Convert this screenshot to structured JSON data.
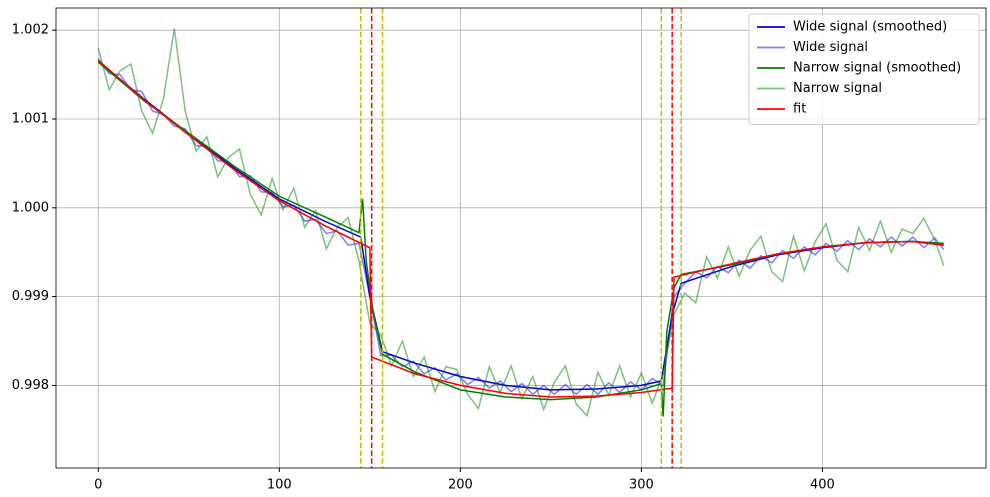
{
  "chart_data": {
    "type": "line",
    "xlim": [
      -23.35,
      490.35
    ],
    "xticks": [
      0,
      100,
      200,
      300,
      400
    ],
    "ylim": [
      0.99707,
      1.00225
    ],
    "yticks": [
      1.002,
      1.001,
      {
        "value": 1.0,
        "label": "1.000"
      },
      0.999,
      0.998
    ],
    "grid": true,
    "legend": "upper right",
    "vlines": [
      {
        "x": 145,
        "color": "#bfbf00",
        "dash": true
      },
      {
        "x": 151,
        "color": "#ff0000",
        "dash": true
      },
      {
        "x": 157,
        "color": "#bfbf00",
        "dash": true
      },
      {
        "x": 311,
        "color": "#bfbf00",
        "dash": true
      },
      {
        "x": 317,
        "color": "#ff0000",
        "dash": true
      },
      {
        "x": 322,
        "color": "#bfbf00",
        "dash": true
      }
    ],
    "series": [
      {
        "name": "Wide signal (smoothed)",
        "color": "#0000cc",
        "alpha": 1,
        "x": [
          0,
          25,
          50,
          75,
          100,
          125,
          145,
          150,
          157,
          175,
          200,
          225,
          250,
          275,
          300,
          311,
          317,
          322,
          350,
          375,
          400,
          425,
          450,
          467
        ],
        "values": [
          1.00165,
          1.00123,
          1.00083,
          1.00045,
          1.0001,
          0.99985,
          0.99967,
          0.999,
          0.99838,
          0.99825,
          0.9981,
          0.998,
          0.99795,
          0.99796,
          0.998,
          0.99805,
          0.9988,
          0.99915,
          0.99934,
          0.99947,
          0.99955,
          0.99961,
          0.99962,
          0.99958
        ]
      },
      {
        "name": "Wide signal",
        "color": "#0000ff",
        "alpha": 0.5,
        "x": [
          0,
          6,
          12,
          18,
          24,
          30,
          36,
          42,
          48,
          54,
          60,
          66,
          72,
          78,
          84,
          90,
          96,
          102,
          108,
          114,
          120,
          126,
          132,
          138,
          144,
          150,
          156,
          162,
          168,
          174,
          180,
          186,
          192,
          198,
          204,
          210,
          216,
          222,
          228,
          234,
          240,
          246,
          252,
          258,
          264,
          270,
          276,
          282,
          288,
          294,
          300,
          306,
          312,
          318,
          324,
          330,
          336,
          342,
          348,
          354,
          360,
          366,
          372,
          378,
          384,
          390,
          396,
          402,
          408,
          414,
          420,
          426,
          432,
          438,
          444,
          450,
          456,
          462,
          467
        ],
        "values": [
          1.00168,
          1.00151,
          1.0015,
          1.00133,
          1.00131,
          1.00109,
          1.00105,
          1.00092,
          1.00089,
          1.0007,
          1.00069,
          1.00053,
          1.00052,
          1.00035,
          1.00036,
          1.00018,
          1.00017,
          1.00001,
          1.00003,
          0.99985,
          0.99987,
          0.99971,
          0.99974,
          0.99958,
          0.9996,
          0.999,
          0.99834,
          0.99834,
          0.99821,
          0.99827,
          0.99813,
          0.9982,
          0.99806,
          0.99813,
          0.99801,
          0.99809,
          0.99797,
          0.99805,
          0.99793,
          0.99802,
          0.9979,
          0.998,
          0.9979,
          0.99801,
          0.9979,
          0.99801,
          0.9979,
          0.99803,
          0.99792,
          0.99804,
          0.99795,
          0.99808,
          0.998,
          0.999,
          0.99915,
          0.99928,
          0.99921,
          0.99934,
          0.99927,
          0.99941,
          0.99932,
          0.99946,
          0.99938,
          0.99952,
          0.99943,
          0.99956,
          0.99947,
          0.9996,
          0.99951,
          0.99963,
          0.99953,
          0.99965,
          0.99956,
          0.99967,
          0.99957,
          0.99967,
          0.99955,
          0.99966,
          0.99953
        ]
      },
      {
        "name": "Narrow signal (smoothed)",
        "color": "#008000",
        "alpha": 1,
        "x": [
          0,
          25,
          50,
          75,
          100,
          125,
          144,
          146,
          148,
          152,
          157,
          175,
          200,
          225,
          250,
          275,
          300,
          311,
          312,
          314,
          318,
          322,
          350,
          375,
          400,
          425,
          450,
          467
        ],
        "values": [
          1.00164,
          1.00121,
          1.00084,
          1.00047,
          1.00013,
          0.9999,
          0.99972,
          1.0001,
          0.9994,
          0.9988,
          0.99835,
          0.99815,
          0.99795,
          0.99787,
          0.99784,
          0.99787,
          0.99795,
          0.99802,
          0.99765,
          0.9986,
          0.9991,
          0.99925,
          0.99936,
          0.99948,
          0.99956,
          0.99961,
          0.99962,
          0.9996
        ]
      },
      {
        "name": "Narrow signal",
        "color": "#008000",
        "alpha": 0.5,
        "x": [
          0,
          6,
          12,
          18,
          24,
          30,
          36,
          42,
          48,
          54,
          60,
          66,
          72,
          78,
          84,
          90,
          96,
          102,
          108,
          114,
          120,
          126,
          132,
          138,
          144,
          150,
          156,
          162,
          168,
          174,
          180,
          186,
          192,
          198,
          204,
          210,
          216,
          222,
          228,
          234,
          240,
          246,
          252,
          258,
          264,
          270,
          276,
          282,
          288,
          294,
          300,
          306,
          312,
          318,
          324,
          330,
          336,
          342,
          348,
          354,
          360,
          366,
          372,
          378,
          384,
          390,
          396,
          402,
          408,
          414,
          420,
          426,
          432,
          438,
          444,
          450,
          456,
          462,
          467
        ],
        "values": [
          1.0018,
          1.00133,
          1.00154,
          1.00162,
          1.00109,
          1.00084,
          1.00123,
          1.00202,
          1.00109,
          1.00064,
          1.0008,
          1.00035,
          1.00057,
          1.00066,
          1.00015,
          0.99992,
          1.00033,
          0.99998,
          1.00022,
          0.99978,
          0.99997,
          0.99954,
          0.99978,
          0.99989,
          0.9994,
          0.9987,
          0.99857,
          0.99822,
          0.9985,
          0.9981,
          0.99832,
          0.99793,
          0.99821,
          0.99818,
          0.9979,
          0.99774,
          0.99821,
          0.99792,
          0.99822,
          0.99785,
          0.9981,
          0.99773,
          0.99804,
          0.99822,
          0.99779,
          0.99766,
          0.99815,
          0.99789,
          0.99822,
          0.99787,
          0.99814,
          0.9978,
          0.99813,
          0.9988,
          0.99904,
          0.99893,
          0.99945,
          0.99921,
          0.99956,
          0.99923,
          0.99952,
          0.99968,
          0.99928,
          0.99917,
          0.99968,
          0.99929,
          0.99962,
          0.99982,
          0.99941,
          0.99928,
          0.99978,
          0.99952,
          0.99985,
          0.9995,
          0.99976,
          0.99971,
          0.99988,
          0.99964,
          0.99935
        ]
      },
      {
        "name": "fit",
        "color": "#ff0000",
        "alpha": 1,
        "x": [
          0,
          25,
          50,
          75,
          100,
          125,
          150,
          151,
          175,
          200,
          225,
          250,
          275,
          300,
          317,
          318,
          350,
          375,
          400,
          425,
          450,
          467
        ],
        "values": [
          1.00166,
          1.00122,
          1.00082,
          1.00043,
          1.00008,
          0.9998,
          0.99955,
          0.99832,
          0.99813,
          0.998,
          0.99791,
          0.99787,
          0.99788,
          0.99792,
          0.99797,
          0.99922,
          0.99937,
          0.99948,
          0.99956,
          0.99961,
          0.99962,
          0.99958
        ]
      }
    ]
  }
}
